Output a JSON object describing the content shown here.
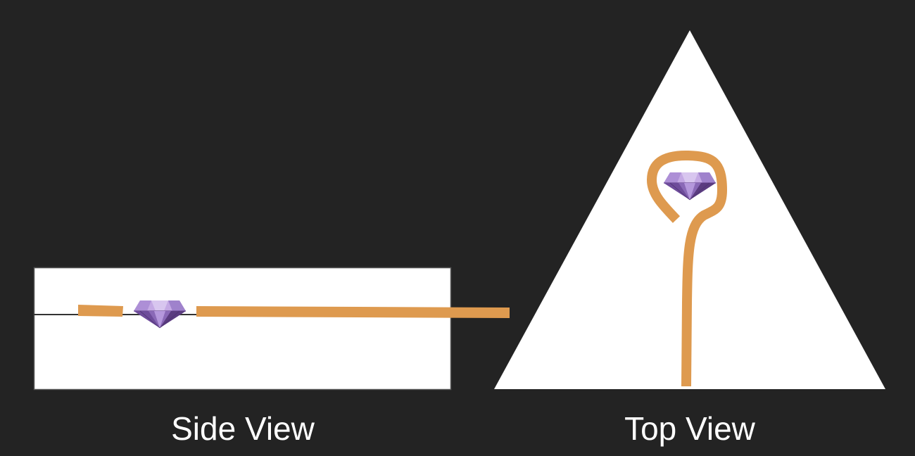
{
  "colors": {
    "background": "#232323",
    "panel": "#ffffff",
    "panel_border": "#555555",
    "wire": "#de9a4f",
    "surface_line": "#333333",
    "gem_light": "#c4a9e4",
    "gem_mid": "#9a7ac6",
    "gem_dark": "#5b3c80"
  },
  "side_view": {
    "caption": "Side View",
    "icon": "gem-icon"
  },
  "top_view": {
    "caption": "Top View",
    "icon": "gem-icon"
  }
}
